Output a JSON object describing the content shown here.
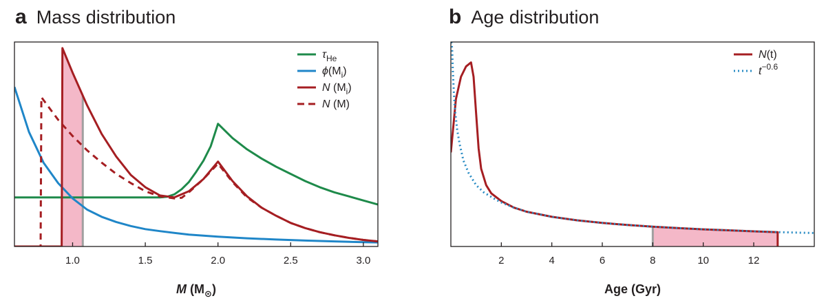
{
  "panels": {
    "a": {
      "letter": "a",
      "title": "Mass distribution"
    },
    "b": {
      "letter": "b",
      "title": "Age distribution"
    }
  },
  "colors": {
    "green": "#1e8a4a",
    "blue": "#1f86c8",
    "red": "#a51e22",
    "pink": "#f4b8c8",
    "gray": "#a0a0a0",
    "dotted_blue": "#2a8cc4"
  },
  "chart_data": [
    {
      "type": "line",
      "title": "Mass distribution",
      "xlabel": {
        "symbol": "M",
        "unit": "M",
        "unit_sub": "⊙"
      },
      "ylabel": "",
      "xlim": [
        0.6,
        3.1
      ],
      "ylim": [
        0,
        1.0
      ],
      "xticks": [
        1.0,
        1.5,
        2.0,
        2.5,
        3.0
      ],
      "xtick_labels": [
        "1.0",
        "1.5",
        "2.0",
        "2.5",
        "3.0"
      ],
      "legend_position": "top-right",
      "legend": [
        {
          "key": "tau",
          "sym": "τ",
          "sub": "He",
          "sup": "",
          "after": "",
          "style": "solid",
          "color_key": "green"
        },
        {
          "key": "phi",
          "sym": "ϕ",
          "sub": "",
          "sup": "",
          "after": "(M",
          "after_sub": "i",
          "after_close": ")",
          "style": "solid",
          "color_key": "blue"
        },
        {
          "key": "NMi",
          "sym": "N",
          "sub": "",
          "sup": "",
          "after": " (M",
          "after_sub": "i",
          "after_close": ")",
          "style": "solid",
          "color_key": "red"
        },
        {
          "key": "NM",
          "sym": "N",
          "sub": "",
          "sup": "",
          "after": " (M)",
          "after_sub": "",
          "after_close": "",
          "style": "dashed",
          "color_key": "red"
        }
      ],
      "series": [
        {
          "key": "tau",
          "color_key": "green",
          "dash": "",
          "x": [
            0.6,
            1.0,
            1.3,
            1.5,
            1.6,
            1.65,
            1.7,
            1.75,
            1.8,
            1.85,
            1.9,
            1.95,
            2.0,
            2.1,
            2.2,
            2.3,
            2.4,
            2.5,
            2.6,
            2.7,
            2.8,
            2.9,
            3.0,
            3.1
          ],
          "y": [
            0.24,
            0.24,
            0.24,
            0.24,
            0.24,
            0.243,
            0.255,
            0.28,
            0.315,
            0.365,
            0.42,
            0.49,
            0.6,
            0.53,
            0.475,
            0.43,
            0.39,
            0.355,
            0.32,
            0.29,
            0.265,
            0.245,
            0.225,
            0.205
          ]
        },
        {
          "key": "phi",
          "color_key": "blue",
          "dash": "",
          "x": [
            0.6,
            0.7,
            0.8,
            0.9,
            1.0,
            1.1,
            1.2,
            1.3,
            1.4,
            1.5,
            1.6,
            1.8,
            2.0,
            2.2,
            2.4,
            2.6,
            2.8,
            3.0,
            3.1
          ],
          "y": [
            0.78,
            0.56,
            0.41,
            0.31,
            0.235,
            0.18,
            0.145,
            0.12,
            0.1,
            0.085,
            0.075,
            0.058,
            0.048,
            0.04,
            0.034,
            0.029,
            0.025,
            0.021,
            0.02
          ]
        },
        {
          "key": "NMi",
          "color_key": "red",
          "dash": "",
          "x": [
            0.6,
            0.9,
            0.925,
            0.93,
            1.0,
            1.1,
            1.2,
            1.3,
            1.4,
            1.5,
            1.6,
            1.7,
            1.8,
            1.9,
            2.0,
            2.1,
            2.2,
            2.3,
            2.4,
            2.5,
            2.6,
            2.7,
            2.8,
            2.9,
            3.0,
            3.1
          ],
          "y": [
            0.0,
            0.0,
            0.0,
            0.97,
            0.85,
            0.69,
            0.55,
            0.44,
            0.35,
            0.29,
            0.25,
            0.24,
            0.27,
            0.33,
            0.415,
            0.32,
            0.245,
            0.19,
            0.15,
            0.115,
            0.09,
            0.07,
            0.055,
            0.042,
            0.032,
            0.025
          ]
        },
        {
          "key": "NM",
          "color_key": "red",
          "dash": "9,7",
          "x": [
            0.6,
            0.76,
            0.78,
            0.785,
            0.9,
            1.0,
            1.1,
            1.2,
            1.3,
            1.4,
            1.5,
            1.6,
            1.7,
            1.75,
            1.8,
            1.9,
            2.0,
            2.1,
            2.2,
            2.3,
            2.4,
            2.5,
            2.6,
            2.7,
            2.8,
            2.9,
            3.0,
            3.1
          ],
          "y": [
            0.0,
            0.0,
            0.0,
            0.73,
            0.62,
            0.54,
            0.47,
            0.41,
            0.355,
            0.31,
            0.27,
            0.245,
            0.235,
            0.238,
            0.265,
            0.33,
            0.405,
            0.315,
            0.24,
            0.19,
            0.15,
            0.115,
            0.09,
            0.07,
            0.055,
            0.042,
            0.032,
            0.025
          ]
        }
      ],
      "shaded_region": {
        "x_from": 0.93,
        "x_to": 1.07,
        "under_series": "NMi",
        "fill_key": "pink",
        "edge_key": "gray"
      }
    },
    {
      "type": "line",
      "title": "Age distribution",
      "xlabel": "Age (Gyr)",
      "ylabel": "",
      "xlim": [
        0,
        14.4
      ],
      "ylim": [
        0,
        1.0
      ],
      "xticks": [
        2,
        4,
        6,
        8,
        10,
        12
      ],
      "xtick_labels": [
        "2",
        "4",
        "6",
        "8",
        "10",
        "12"
      ],
      "legend_position": "top-right",
      "legend": [
        {
          "key": "Nt",
          "sym": "N",
          "after": "(t)",
          "style": "solid",
          "color_key": "red"
        },
        {
          "key": "pow",
          "sym": "t",
          "sup": "−0.6",
          "after": "",
          "style": "dotted",
          "color_key": "dotted_blue"
        }
      ],
      "series": [
        {
          "key": "Nt",
          "color_key": "red",
          "dash": "",
          "x": [
            0.0,
            0.2,
            0.4,
            0.6,
            0.8,
            0.9,
            1.0,
            1.1,
            1.2,
            1.4,
            1.6,
            2.0,
            2.5,
            3.0,
            4.0,
            5.0,
            6.0,
            7.0,
            8.0,
            9.0,
            10.0,
            11.0,
            12.0,
            12.95,
            12.95
          ],
          "y": [
            0.46,
            0.72,
            0.83,
            0.88,
            0.9,
            0.83,
            0.65,
            0.48,
            0.38,
            0.3,
            0.26,
            0.222,
            0.19,
            0.17,
            0.145,
            0.128,
            0.115,
            0.105,
            0.097,
            0.09,
            0.084,
            0.079,
            0.074,
            0.07,
            0.0
          ]
        },
        {
          "key": "pow",
          "color_key": "dotted_blue",
          "dash": "2,4",
          "x": [
            0.02,
            0.05,
            0.08,
            0.12,
            0.17,
            0.25,
            0.35,
            0.5,
            0.7,
            1.0,
            1.3,
            1.7,
            2.0,
            2.5,
            3.0,
            4.0,
            5.0,
            6.0,
            7.0,
            8.0,
            9.0,
            10.0,
            11.0,
            12.0,
            13.0,
            14.0,
            14.4
          ],
          "y": [
            1.0,
            0.97,
            0.86,
            0.75,
            0.66,
            0.57,
            0.5,
            0.42,
            0.36,
            0.3,
            0.265,
            0.235,
            0.215,
            0.19,
            0.17,
            0.145,
            0.128,
            0.115,
            0.105,
            0.097,
            0.09,
            0.084,
            0.079,
            0.074,
            0.07,
            0.067,
            0.066
          ]
        }
      ],
      "shaded_region": {
        "x_from": 8.0,
        "x_to": 12.95,
        "under_series": "Nt",
        "fill_key": "pink",
        "edge_key": "gray"
      }
    }
  ]
}
